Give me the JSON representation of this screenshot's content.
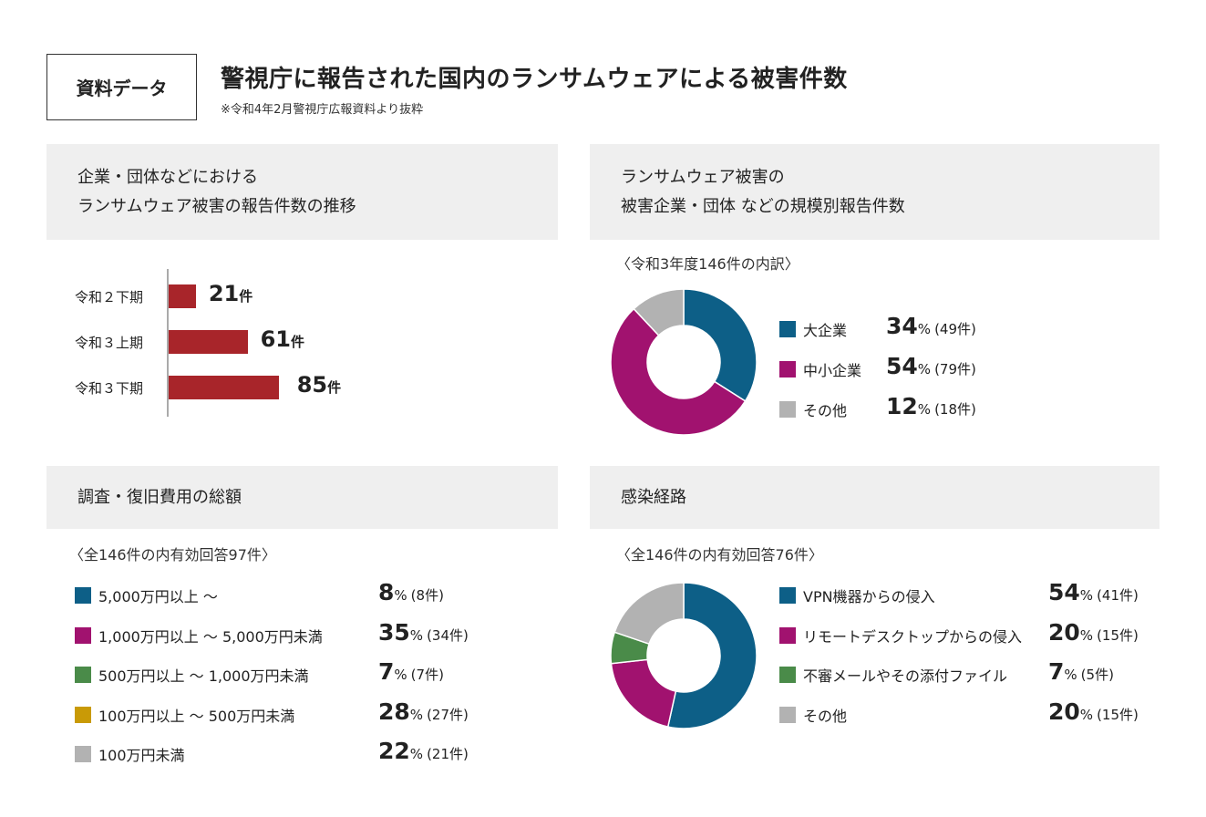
{
  "header": {
    "tag": "資料データ",
    "title": "警視庁に報告された国内のランサムウェアによる被害件数",
    "subtitle": "※令和4年2月警視庁広報資料より抜粋"
  },
  "colors": {
    "teal": "#0d5f87",
    "magenta": "#a1126f",
    "green": "#4a8b49",
    "gold": "#c99a06",
    "gray": "#b2b2b2",
    "bar": "#a8252a",
    "panel": "#efefef"
  },
  "chart_data": [
    {
      "type": "bar",
      "title": "企業・団体などにおける ランサムウェア被害の報告件数の推移",
      "title_lines": [
        "企業・団体などにおける",
        "ランサムウェア被害の報告件数の推移"
      ],
      "categories": [
        "令和２下期",
        "令和３上期",
        "令和３下期"
      ],
      "values": [
        21,
        61,
        85
      ],
      "value_labels": [
        "21",
        "61",
        "85"
      ],
      "unit": "件",
      "orientation": "horizontal"
    },
    {
      "type": "pie",
      "title_lines": [
        "ランサムウェア被害の",
        "被害企業・団体 などの規模別報告件数"
      ],
      "note": "〈令和3年度146件の内訳〉",
      "categories": [
        "大企業",
        "中小企業",
        "その他"
      ],
      "percent": [
        34,
        54,
        12
      ],
      "counts": [
        49,
        79,
        18
      ],
      "percent_labels": [
        "34",
        "54",
        "12"
      ],
      "count_labels": [
        "(49件)",
        "(79件)",
        "(18件)"
      ],
      "colors": [
        "#0d5f87",
        "#a1126f",
        "#b2b2b2"
      ]
    },
    {
      "type": "table",
      "title_lines": [
        "調査・復旧費用の総額"
      ],
      "note": "〈全146件の内有効回答97件〉",
      "categories": [
        "5,000万円以上 〜",
        "1,000万円以上 〜 5,000万円未満",
        "500万円以上 〜 1,000万円未満",
        "100万円以上 〜 500万円未満",
        "100万円未満"
      ],
      "percent": [
        8,
        35,
        7,
        28,
        22
      ],
      "counts": [
        8,
        34,
        7,
        27,
        21
      ],
      "percent_labels": [
        "8",
        "35",
        "7",
        "28",
        "22"
      ],
      "count_labels": [
        "(8件)",
        "(34件)",
        "(7件)",
        "(27件)",
        "(21件)"
      ],
      "colors": [
        "#0d5f87",
        "#a1126f",
        "#4a8b49",
        "#c99a06",
        "#b2b2b2"
      ]
    },
    {
      "type": "pie",
      "title_lines": [
        "感染経路"
      ],
      "note": "〈全146件の内有効回答76件〉",
      "categories": [
        "VPN機器からの侵入",
        "リモートデスクトップからの侵入",
        "不審メールやその添付ファイル",
        "その他"
      ],
      "percent": [
        54,
        20,
        7,
        20
      ],
      "counts": [
        41,
        15,
        5,
        15
      ],
      "percent_labels": [
        "54",
        "20",
        "7",
        "20"
      ],
      "count_labels": [
        "(41件)",
        "(15件)",
        "(5件)",
        "(15件)"
      ],
      "colors": [
        "#0d5f87",
        "#a1126f",
        "#4a8b49",
        "#b2b2b2"
      ]
    }
  ],
  "pct_sign": "%"
}
